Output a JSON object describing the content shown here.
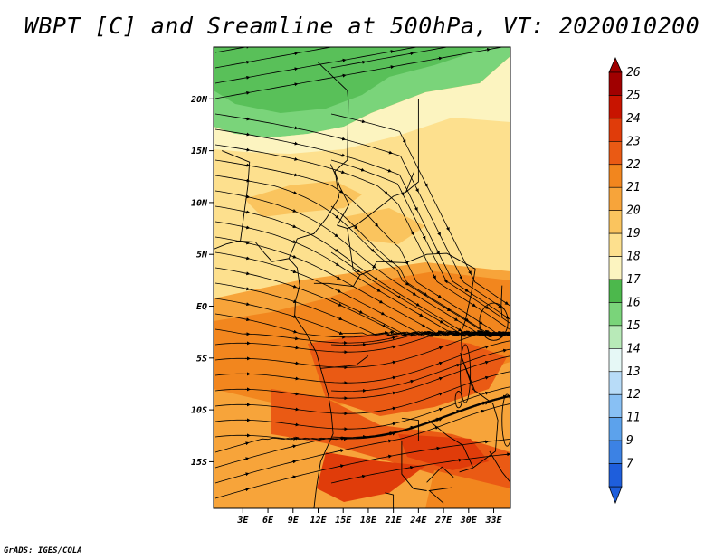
{
  "title": "WBPT [C] and Sreamline at 500hPa, VT: 2020010200",
  "credit": "GrADS: IGES/COLA",
  "map": {
    "lon_range": [
      -0.5,
      35.0
    ],
    "lat_range": [
      -19.5,
      25.0
    ],
    "lat_ticks": [
      {
        "value": 20,
        "label": "20N"
      },
      {
        "value": 15,
        "label": "15N"
      },
      {
        "value": 10,
        "label": "10N"
      },
      {
        "value": 5,
        "label": "5N"
      },
      {
        "value": 0,
        "label": "EQ"
      },
      {
        "value": -5,
        "label": "5S"
      },
      {
        "value": -10,
        "label": "10S"
      },
      {
        "value": -15,
        "label": "15S"
      }
    ],
    "lon_ticks": [
      {
        "value": 3,
        "label": "3E"
      },
      {
        "value": 6,
        "label": "6E"
      },
      {
        "value": 9,
        "label": "9E"
      },
      {
        "value": 12,
        "label": "12E"
      },
      {
        "value": 15,
        "label": "15E"
      },
      {
        "value": 18,
        "label": "18E"
      },
      {
        "value": 21,
        "label": "21E"
      },
      {
        "value": 24,
        "label": "24E"
      },
      {
        "value": 27,
        "label": "27E"
      },
      {
        "value": 30,
        "label": "30E"
      },
      {
        "value": 33,
        "label": "33E"
      }
    ]
  },
  "colorbar": {
    "labels": [
      "26",
      "25",
      "24",
      "23",
      "22",
      "21",
      "20",
      "19",
      "18",
      "17",
      "16",
      "15",
      "14",
      "13",
      "12",
      "11",
      "9",
      "7"
    ],
    "colors": [
      "#a00000",
      "#c81400",
      "#e03c0a",
      "#ea5a14",
      "#f2861e",
      "#f7a43a",
      "#fac45e",
      "#fde08e",
      "#fcf4c0",
      "#4cb84c",
      "#7ad47a",
      "#b8eab8",
      "#e6f8f6",
      "#b8dcf8",
      "#88c0f4",
      "#5ca2ec",
      "#3c82e4",
      "#1e5edc"
    ],
    "top_arrow_color": "#a00000",
    "bottom_arrow_color": "#1e5edc"
  }
}
